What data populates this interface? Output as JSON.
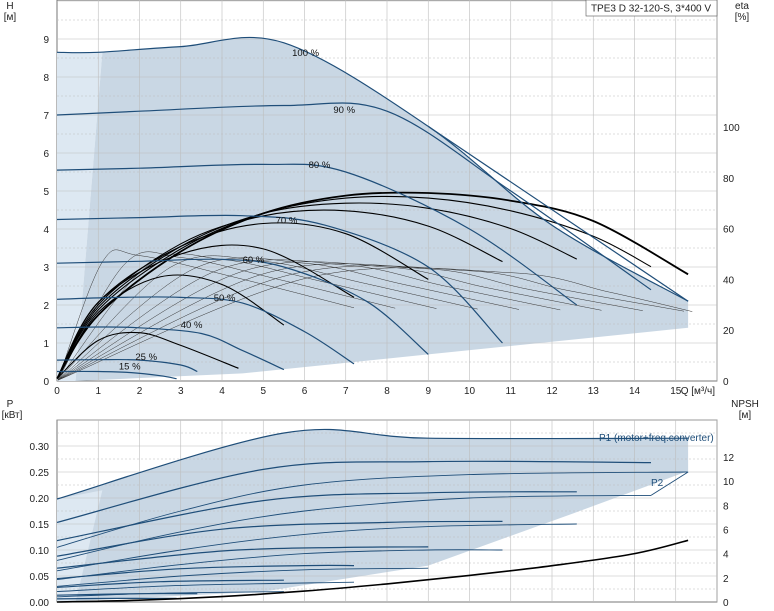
{
  "title": "TPE3 D 32-120-S, 3*400 V",
  "colors": {
    "envelope_fill": "#c6d5e3",
    "region_fill": "#dde8f2",
    "curve_blue": "#1f4e79",
    "thin_curve": "#222222",
    "eff_curve": "#000000",
    "grid": "#bdbdbd"
  },
  "chart_data": [
    {
      "type": "line",
      "name": "head",
      "ylabel": "H",
      "yunit": "[м]",
      "y2label": "eta",
      "y2unit": "[%]",
      "xlabel": "Q [м³/ч]",
      "xlim": [
        0,
        16
      ],
      "ylim": [
        0,
        10
      ],
      "y2lim": [
        0,
        150
      ],
      "xticks": [
        "0",
        "1",
        "2",
        "3",
        "4",
        "5",
        "6",
        "7",
        "8",
        "9",
        "10",
        "11",
        "12",
        "13",
        "14",
        "15"
      ],
      "yticks": [
        "0",
        "1",
        "2",
        "3",
        "4",
        "5",
        "6",
        "7",
        "8",
        "9"
      ],
      "y2ticks": [
        "0",
        "20",
        "40",
        "60",
        "80",
        "100"
      ],
      "speed_curves": [
        {
          "label": "100 %",
          "x": [
            0,
            1,
            3,
            5.5,
            9,
            12,
            15.3
          ],
          "y": [
            8.65,
            8.65,
            8.8,
            8.9,
            6.7,
            4.1,
            2.1
          ]
        },
        {
          "label": "90 %",
          "x": [
            0,
            2,
            5.5,
            8,
            11,
            14.4
          ],
          "y": [
            7.0,
            7.1,
            7.25,
            7.1,
            5.0,
            2.4
          ]
        },
        {
          "label": "80 %",
          "x": [
            0,
            2,
            5,
            7,
            10,
            12.6
          ],
          "y": [
            5.55,
            5.6,
            5.7,
            5.5,
            4.0,
            2.0
          ]
        },
        {
          "label": "70 %",
          "x": [
            0,
            2,
            4.5,
            6.5,
            9,
            10.8
          ],
          "y": [
            4.25,
            4.3,
            4.35,
            4.1,
            3.0,
            1.0
          ]
        },
        {
          "label": "60 %",
          "x": [
            0,
            2,
            4,
            5.5,
            7.5,
            9
          ],
          "y": [
            3.1,
            3.15,
            3.2,
            3.0,
            2.1,
            0.7
          ]
        },
        {
          "label": "50 %",
          "x": [
            0,
            1.5,
            3,
            4.5,
            6,
            7.2
          ],
          "y": [
            2.15,
            2.2,
            2.2,
            2.05,
            1.3,
            0.45
          ]
        },
        {
          "label": "40 %",
          "x": [
            0,
            1,
            2,
            3.5,
            4.5,
            5.5
          ],
          "y": [
            1.4,
            1.42,
            1.4,
            1.25,
            0.8,
            0.3
          ]
        },
        {
          "label": "25 %",
          "x": [
            0,
            1,
            2,
            3,
            3.4
          ],
          "y": [
            0.55,
            0.56,
            0.55,
            0.42,
            0.25
          ]
        },
        {
          "label": "15 %",
          "x": [
            0,
            1,
            1.8,
            2.5,
            2.9
          ],
          "y": [
            0.25,
            0.25,
            0.22,
            0.14,
            0.06
          ]
        }
      ],
      "efficiency_curves": [
        {
          "x": [
            0,
            1,
            3,
            5,
            7,
            9,
            11,
            13,
            15.3
          ],
          "y": [
            1,
            26,
            51,
            66,
            73,
            74,
            71,
            63,
            42
          ]
        },
        {
          "x": [
            0,
            1,
            3,
            5,
            7,
            9,
            11,
            13,
            14.4
          ],
          "y": [
            1,
            28,
            52,
            66,
            72,
            72,
            67,
            57,
            45
          ]
        },
        {
          "x": [
            0,
            1,
            3,
            5,
            7,
            9,
            11,
            12.6
          ],
          "y": [
            1,
            29,
            53,
            66,
            70,
            68,
            60,
            48
          ]
        },
        {
          "x": [
            0,
            1,
            3,
            5,
            7,
            9,
            10.8
          ],
          "y": [
            1,
            30,
            54,
            65,
            67,
            61,
            47
          ]
        },
        {
          "x": [
            0,
            1,
            3,
            5,
            7,
            9
          ],
          "y": [
            1,
            31,
            53,
            62,
            58,
            40
          ]
        },
        {
          "x": [
            0,
            1,
            3,
            5,
            7.2
          ],
          "y": [
            1,
            31,
            50,
            52,
            33
          ]
        },
        {
          "x": [
            0,
            1,
            2.5,
            4,
            5.5
          ],
          "y": [
            1,
            27,
            41,
            38,
            22
          ]
        },
        {
          "x": [
            0,
            1,
            2,
            3,
            4.4
          ],
          "y": [
            1,
            16,
            19,
            14,
            5
          ]
        }
      ]
    },
    {
      "type": "line",
      "name": "power",
      "ylabel": "P",
      "yunit": "[кВт]",
      "y2label": "NPSH",
      "y2unit": "[м]",
      "xlim": [
        0,
        16
      ],
      "ylim": [
        0,
        0.35
      ],
      "y2lim": [
        0,
        14
      ],
      "yticks": [
        "0.00",
        "0.05",
        "0.10",
        "0.15",
        "0.20",
        "0.25",
        "0.30"
      ],
      "y2ticks": [
        "0",
        "2",
        "4",
        "6",
        "8",
        "10",
        "12"
      ],
      "series_labels": [
        "P1 (motor+freq.converter)",
        "P2"
      ],
      "p1_curves": [
        {
          "x": [
            0,
            5.5,
            9,
            15.3
          ],
          "y": [
            0.198,
            0.325,
            0.315,
            0.315
          ]
        },
        {
          "x": [
            0,
            5,
            9,
            14.4
          ],
          "y": [
            0.153,
            0.255,
            0.27,
            0.268
          ]
        },
        {
          "x": [
            0,
            5,
            9,
            12.6
          ],
          "y": [
            0.118,
            0.195,
            0.21,
            0.212
          ]
        },
        {
          "x": [
            0,
            4,
            8,
            10.8
          ],
          "y": [
            0.088,
            0.14,
            0.153,
            0.155
          ]
        },
        {
          "x": [
            0,
            4,
            7,
            9
          ],
          "y": [
            0.065,
            0.098,
            0.105,
            0.106
          ]
        },
        {
          "x": [
            0,
            3,
            6,
            7.2
          ],
          "y": [
            0.045,
            0.064,
            0.07,
            0.07
          ]
        },
        {
          "x": [
            0,
            2.5,
            5.5
          ],
          "y": [
            0.028,
            0.039,
            0.042
          ]
        },
        {
          "x": [
            0,
            2,
            3.4
          ],
          "y": [
            0.013,
            0.016,
            0.016
          ]
        },
        {
          "x": [
            0,
            1.5,
            2.9
          ],
          "y": [
            0.006,
            0.007,
            0.007
          ]
        }
      ],
      "p2_curves": [
        {
          "x": [
            0,
            3,
            6,
            10,
            15.3
          ],
          "y": [
            0.105,
            0.175,
            0.225,
            0.245,
            0.25
          ]
        },
        {
          "x": [
            0,
            3,
            6,
            10,
            14.4
          ],
          "y": [
            0.08,
            0.135,
            0.175,
            0.2,
            0.205
          ]
        },
        {
          "x": [
            0,
            3,
            6,
            9,
            12.6
          ],
          "y": [
            0.06,
            0.1,
            0.13,
            0.145,
            0.15
          ]
        },
        {
          "x": [
            0,
            3,
            6,
            9,
            10.8
          ],
          "y": [
            0.043,
            0.072,
            0.093,
            0.1,
            0.1
          ]
        },
        {
          "x": [
            0,
            3,
            6,
            9
          ],
          "y": [
            0.03,
            0.05,
            0.062,
            0.065
          ]
        },
        {
          "x": [
            0,
            3,
            7.2
          ],
          "y": [
            0.02,
            0.032,
            0.038
          ]
        },
        {
          "x": [
            0,
            2.5,
            5.5
          ],
          "y": [
            0.01,
            0.017,
            0.02
          ]
        }
      ],
      "npsh": {
        "x": [
          0,
          2,
          4,
          6,
          8,
          10,
          12,
          14,
          15.3
        ],
        "y": [
          0.0,
          0.15,
          0.45,
          0.9,
          1.5,
          2.2,
          3.0,
          4.0,
          5.1
        ]
      }
    }
  ]
}
